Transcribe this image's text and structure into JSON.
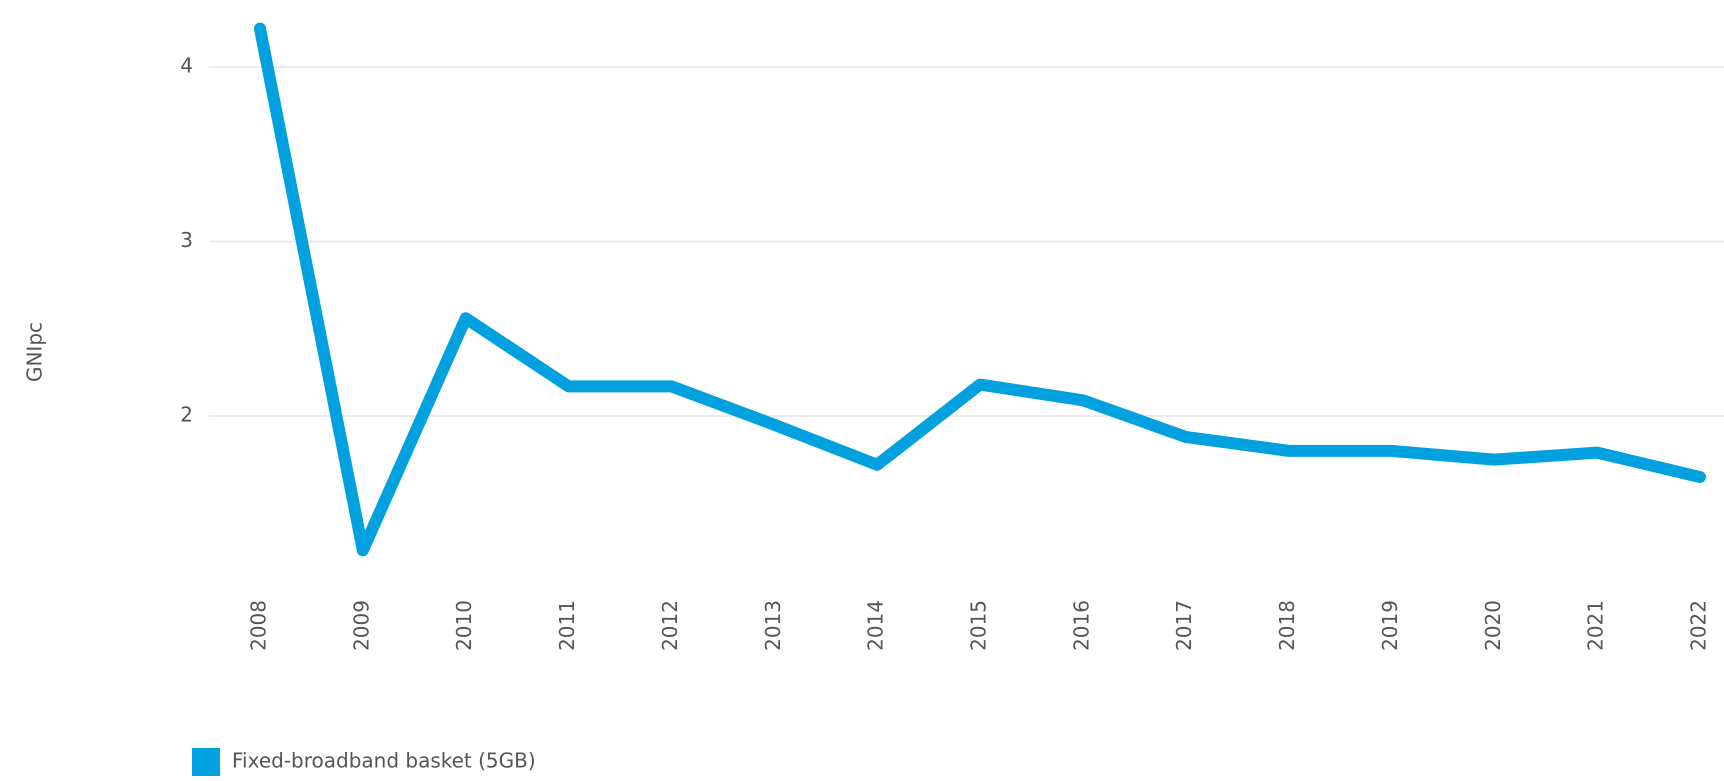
{
  "chart_data": {
    "type": "line",
    "y_label": "GNIpc",
    "categories": [
      "2008",
      "2009",
      "2010",
      "2011",
      "2012",
      "2013",
      "2014",
      "2015",
      "2016",
      "2017",
      "2018",
      "2019",
      "2020",
      "2021",
      "2022"
    ],
    "series": [
      {
        "name": "Fixed-broadband basket (5GB)",
        "color": "#00a1de",
        "values": [
          4.22,
          1.23,
          2.56,
          2.17,
          2.17,
          1.95,
          1.72,
          2.18,
          2.09,
          1.88,
          1.8,
          1.8,
          1.75,
          1.79,
          1.65
        ]
      }
    ],
    "ylim": [
      1.1,
      4.3
    ],
    "yticks": [
      2,
      3,
      4
    ],
    "grid": true,
    "legend": "bottom-left"
  }
}
